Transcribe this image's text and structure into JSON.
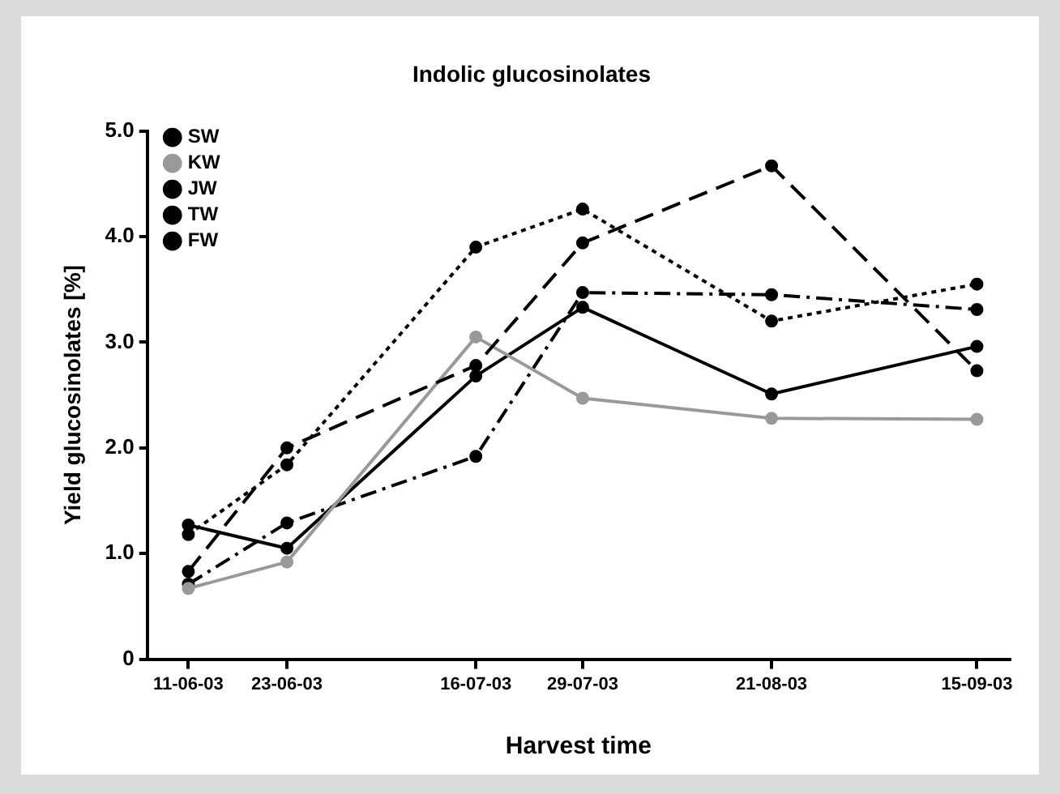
{
  "chart_data": {
    "type": "line",
    "title": "Indolic glucosinolates",
    "xlabel": "Harvest time",
    "ylabel": "Yield glucosinolates [%]",
    "x": [
      "2003-06-11",
      "2003-06-23",
      "2003-07-16",
      "2003-07-29",
      "2003-08-21",
      "2003-09-15"
    ],
    "xlim": [
      "2003-06-06",
      "2003-09-19"
    ],
    "xticks": [
      {
        "value": "2003-06-11",
        "label": "11-06-03"
      },
      {
        "value": "2003-06-23",
        "label": "23-06-03"
      },
      {
        "value": "2003-07-16",
        "label": "16-07-03"
      },
      {
        "value": "2003-07-29",
        "label": "29-07-03"
      },
      {
        "value": "2003-08-21",
        "label": "21-08-03"
      },
      {
        "value": "2003-09-15",
        "label": "15-09-03"
      }
    ],
    "ylim": [
      0,
      5
    ],
    "yticks": [
      0,
      {
        "value": 1,
        "label": "1.0"
      },
      {
        "value": 2,
        "label": "2.0"
      },
      {
        "value": 3,
        "label": "3.0"
      },
      {
        "value": 4,
        "label": "4.0"
      },
      {
        "value": 5,
        "label": "5.0"
      }
    ],
    "series": [
      {
        "name": "SW",
        "color": "#000000",
        "line_style": "dashed",
        "values": [
          0.83,
          2.0,
          2.78,
          3.94,
          4.67,
          2.73
        ]
      },
      {
        "name": "KW",
        "color": "#999999",
        "line_style": "solid",
        "values": [
          0.67,
          0.92,
          3.05,
          2.47,
          2.28,
          2.27
        ]
      },
      {
        "name": "JW",
        "color": "#000000",
        "line_style": "dotted",
        "values": [
          1.18,
          1.84,
          3.9,
          4.26,
          3.2,
          3.55
        ]
      },
      {
        "name": "TW",
        "color": "#000000",
        "line_style": "dashdot",
        "values": [
          0.71,
          1.29,
          1.92,
          3.47,
          3.45,
          3.31
        ]
      },
      {
        "name": "FW",
        "color": "#000000",
        "line_style": "solid",
        "values": [
          1.27,
          1.05,
          2.68,
          3.33,
          2.51,
          2.96
        ]
      }
    ],
    "marker": "circle",
    "grid": false,
    "legend": "top left"
  }
}
